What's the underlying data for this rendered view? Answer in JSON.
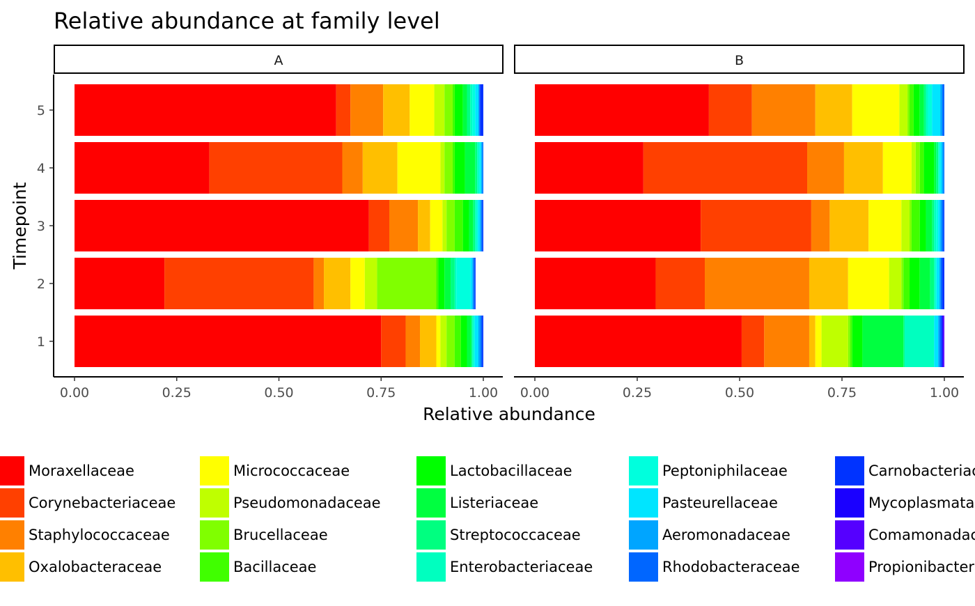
{
  "chart_data": {
    "type": "bar",
    "orientation": "horizontal",
    "stacked": true,
    "title": "Relative abundance at family level",
    "xlabel": "Relative abundance",
    "ylabel": "Timepoint",
    "xlim": [
      0,
      1
    ],
    "x_ticks": [
      "0.00",
      "0.25",
      "0.50",
      "0.75",
      "1.00"
    ],
    "categories": [
      "1",
      "2",
      "3",
      "4",
      "5"
    ],
    "legend_position": "bottom",
    "families": [
      {
        "name": "Moraxellaceae",
        "color": "#FF0000"
      },
      {
        "name": "Corynebacteriaceae",
        "color": "#FF4000"
      },
      {
        "name": "Staphylococcaceae",
        "color": "#FF8000"
      },
      {
        "name": "Oxalobacteraceae",
        "color": "#FFBF00"
      },
      {
        "name": "Micrococcaceae",
        "color": "#FFFF00"
      },
      {
        "name": "Pseudomonadaceae",
        "color": "#BFFF00"
      },
      {
        "name": "Brucellaceae",
        "color": "#80FF00"
      },
      {
        "name": "Bacillaceae",
        "color": "#40FF00"
      },
      {
        "name": "Lactobacillaceae",
        "color": "#00FF00"
      },
      {
        "name": "Listeriaceae",
        "color": "#00FF40"
      },
      {
        "name": "Streptococcaceae",
        "color": "#00FF80"
      },
      {
        "name": "Enterobacteriaceae",
        "color": "#00FFBF"
      },
      {
        "name": "Peptoniphilaceae",
        "color": "#00FFDD"
      },
      {
        "name": "Pasteurellaceae",
        "color": "#00E5FF"
      },
      {
        "name": "Aeromonadaceae",
        "color": "#00A5FF"
      },
      {
        "name": "Rhodobacteraceae",
        "color": "#0066FF"
      },
      {
        "name": "Carnobacteriaceae",
        "color": "#0033FF"
      },
      {
        "name": "Mycoplasmataceae",
        "color": "#1A00FF"
      },
      {
        "name": "Comamonadaceae",
        "color": "#5500FF"
      },
      {
        "name": "Propionibacteriaceae",
        "color": "#8F00FF"
      }
    ],
    "panels": [
      {
        "label": "A",
        "bars": [
          {
            "timepoint": "1",
            "segments": [
              0.75,
              0.06,
              0.035,
              0.04,
              0.01,
              0.015,
              0.02,
              0.015,
              0.015,
              0.01,
              0.003,
              0.003,
              0.003,
              0.009,
              0.005,
              0.004,
              0.003,
              0,
              0,
              0
            ]
          },
          {
            "timepoint": "2",
            "segments": [
              0.22,
              0.365,
              0.025,
              0.065,
              0.035,
              0.03,
              0.145,
              0.005,
              0.015,
              0.015,
              0.01,
              0.004,
              0.034,
              0.005,
              0.003,
              0.003,
              0.002,
              0,
              0,
              0
            ]
          },
          {
            "timepoint": "3",
            "segments": [
              0.72,
              0.05,
              0.07,
              0.03,
              0.03,
              0.01,
              0.02,
              0.02,
              0.015,
              0.01,
              0.005,
              0.004,
              0.003,
              0.005,
              0.003,
              0.003,
              0.002,
              0,
              0,
              0
            ]
          },
          {
            "timepoint": "4",
            "segments": [
              0.33,
              0.325,
              0.05,
              0.085,
              0.105,
              0.01,
              0.02,
              0.005,
              0.025,
              0.025,
              0.005,
              0.004,
              0.003,
              0.003,
              0.003,
              0.002,
              0,
              0,
              0,
              0
            ]
          },
          {
            "timepoint": "5",
            "segments": [
              0.64,
              0.035,
              0.08,
              0.065,
              0.06,
              0.025,
              0.02,
              0.005,
              0.02,
              0.01,
              0.008,
              0.005,
              0.007,
              0.008,
              0.002,
              0.002,
              0.008,
              0,
              0,
              0
            ]
          }
        ]
      },
      {
        "label": "B",
        "bars": [
          {
            "timepoint": "1",
            "segments": [
              0.505,
              0.055,
              0.11,
              0.015,
              0.015,
              0.065,
              0.005,
              0.005,
              0.025,
              0.1,
              0.003,
              0.072,
              0,
              0.01,
              0.004,
              0.003,
              0.003,
              0.002,
              0.003,
              0
            ]
          },
          {
            "timepoint": "2",
            "segments": [
              0.295,
              0.12,
              0.255,
              0.095,
              0.1,
              0.03,
              0.005,
              0.015,
              0.025,
              0.025,
              0.01,
              0.003,
              0.003,
              0.007,
              0.003,
              0.004,
              0.005,
              0,
              0,
              0
            ]
          },
          {
            "timepoint": "3",
            "segments": [
              0.405,
              0.27,
              0.045,
              0.095,
              0.08,
              0.02,
              0.005,
              0.02,
              0.015,
              0.015,
              0.005,
              0.005,
              0.005,
              0.005,
              0.004,
              0.004,
              0.002,
              0,
              0,
              0
            ]
          },
          {
            "timepoint": "4",
            "segments": [
              0.265,
              0.4,
              0.09,
              0.095,
              0.07,
              0.01,
              0.01,
              0.01,
              0.025,
              0.005,
              0.005,
              0.002,
              0.003,
              0.004,
              0.004,
              0.002,
              0,
              0,
              0,
              0
            ]
          },
          {
            "timepoint": "5",
            "segments": [
              0.425,
              0.105,
              0.155,
              0.09,
              0.115,
              0.02,
              0.005,
              0.01,
              0.015,
              0.01,
              0.005,
              0.005,
              0.01,
              0.02,
              0.005,
              0.005,
              0,
              0,
              0,
              0
            ]
          }
        ]
      }
    ]
  }
}
